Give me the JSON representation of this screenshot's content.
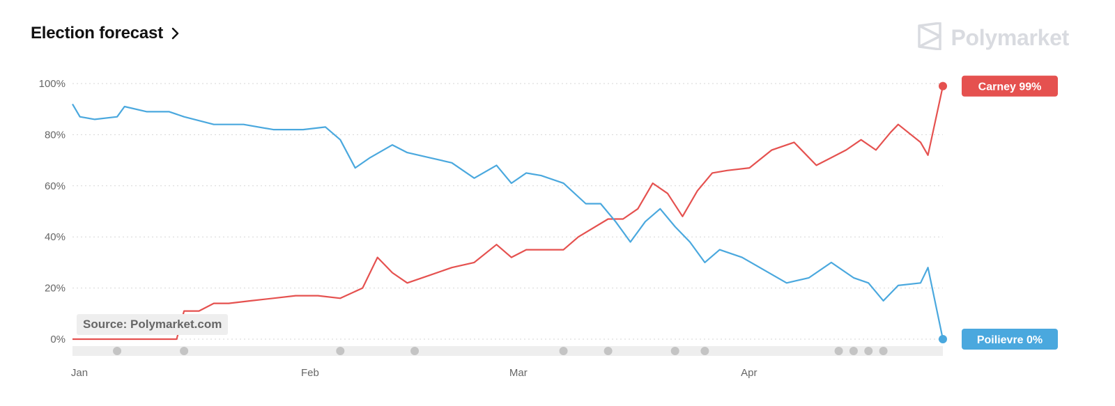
{
  "header": {
    "title": "Election forecast",
    "chevron_icon": "chevron-right-icon"
  },
  "brand": {
    "name": "Polymarket",
    "logo_icon": "polymarket-logo-icon"
  },
  "source": {
    "label": "Source: Polymarket.com"
  },
  "chart_data": {
    "type": "line",
    "title": "Election forecast",
    "xlabel": "",
    "ylabel": "",
    "ylim": [
      0,
      100
    ],
    "y_ticks": [
      "0%",
      "20%",
      "40%",
      "60%",
      "80%",
      "100%"
    ],
    "x_ticks": [
      "Jan",
      "Feb",
      "Mar",
      "Apr"
    ],
    "grid": true,
    "legend": "right-end labels",
    "x_range": [
      "2025-01-01",
      "2025-04-28"
    ],
    "series": [
      {
        "name": "Carney",
        "color": "#e5514f",
        "end_label": "Carney 99%",
        "x": [
          "2025-01-01",
          "2025-01-15",
          "2025-01-16",
          "2025-01-18",
          "2025-01-20",
          "2025-01-22",
          "2025-01-25",
          "2025-01-28",
          "2025-01-31",
          "2025-02-03",
          "2025-02-06",
          "2025-02-09",
          "2025-02-11",
          "2025-02-13",
          "2025-02-15",
          "2025-02-18",
          "2025-02-21",
          "2025-02-24",
          "2025-02-27",
          "2025-03-01",
          "2025-03-03",
          "2025-03-06",
          "2025-03-08",
          "2025-03-10",
          "2025-03-14",
          "2025-03-16",
          "2025-03-18",
          "2025-03-20",
          "2025-03-22",
          "2025-03-24",
          "2025-03-26",
          "2025-03-28",
          "2025-03-30",
          "2025-04-02",
          "2025-04-05",
          "2025-04-08",
          "2025-04-11",
          "2025-04-13",
          "2025-04-15",
          "2025-04-17",
          "2025-04-19",
          "2025-04-21",
          "2025-04-22",
          "2025-04-25",
          "2025-04-26",
          "2025-04-28"
        ],
        "y": [
          0,
          0,
          11,
          11,
          14,
          14,
          15,
          16,
          17,
          17,
          16,
          20,
          32,
          26,
          22,
          25,
          28,
          30,
          37,
          32,
          35,
          35,
          35,
          40,
          47,
          47,
          51,
          61,
          57,
          48,
          58,
          65,
          66,
          67,
          74,
          77,
          68,
          71,
          74,
          78,
          74,
          81,
          84,
          77,
          72,
          99
        ]
      },
      {
        "name": "Poilievre",
        "color": "#4aa8de",
        "end_label": "Poilievre 0%",
        "x": [
          "2025-01-01",
          "2025-01-02",
          "2025-01-04",
          "2025-01-07",
          "2025-01-08",
          "2025-01-11",
          "2025-01-14",
          "2025-01-16",
          "2025-01-20",
          "2025-01-24",
          "2025-01-28",
          "2025-02-01",
          "2025-02-04",
          "2025-02-06",
          "2025-02-08",
          "2025-02-10",
          "2025-02-13",
          "2025-02-15",
          "2025-02-18",
          "2025-02-21",
          "2025-02-24",
          "2025-02-27",
          "2025-03-01",
          "2025-03-03",
          "2025-03-05",
          "2025-03-08",
          "2025-03-11",
          "2025-03-13",
          "2025-03-15",
          "2025-03-17",
          "2025-03-19",
          "2025-03-21",
          "2025-03-23",
          "2025-03-25",
          "2025-03-27",
          "2025-03-29",
          "2025-04-01",
          "2025-04-04",
          "2025-04-07",
          "2025-04-10",
          "2025-04-13",
          "2025-04-16",
          "2025-04-18",
          "2025-04-20",
          "2025-04-22",
          "2025-04-25",
          "2025-04-26",
          "2025-04-28"
        ],
        "y": [
          92,
          87,
          86,
          87,
          91,
          89,
          89,
          87,
          84,
          84,
          82,
          82,
          83,
          78,
          67,
          71,
          76,
          73,
          71,
          69,
          63,
          68,
          61,
          65,
          64,
          61,
          53,
          53,
          46,
          38,
          46,
          51,
          44,
          38,
          30,
          35,
          32,
          27,
          22,
          24,
          30,
          24,
          22,
          15,
          21,
          22,
          28,
          0
        ]
      }
    ],
    "event_markers": [
      "2025-01-07",
      "2025-01-16",
      "2025-02-06",
      "2025-02-16",
      "2025-03-08",
      "2025-03-14",
      "2025-03-23",
      "2025-03-27",
      "2025-04-14",
      "2025-04-16",
      "2025-04-18",
      "2025-04-20"
    ]
  }
}
